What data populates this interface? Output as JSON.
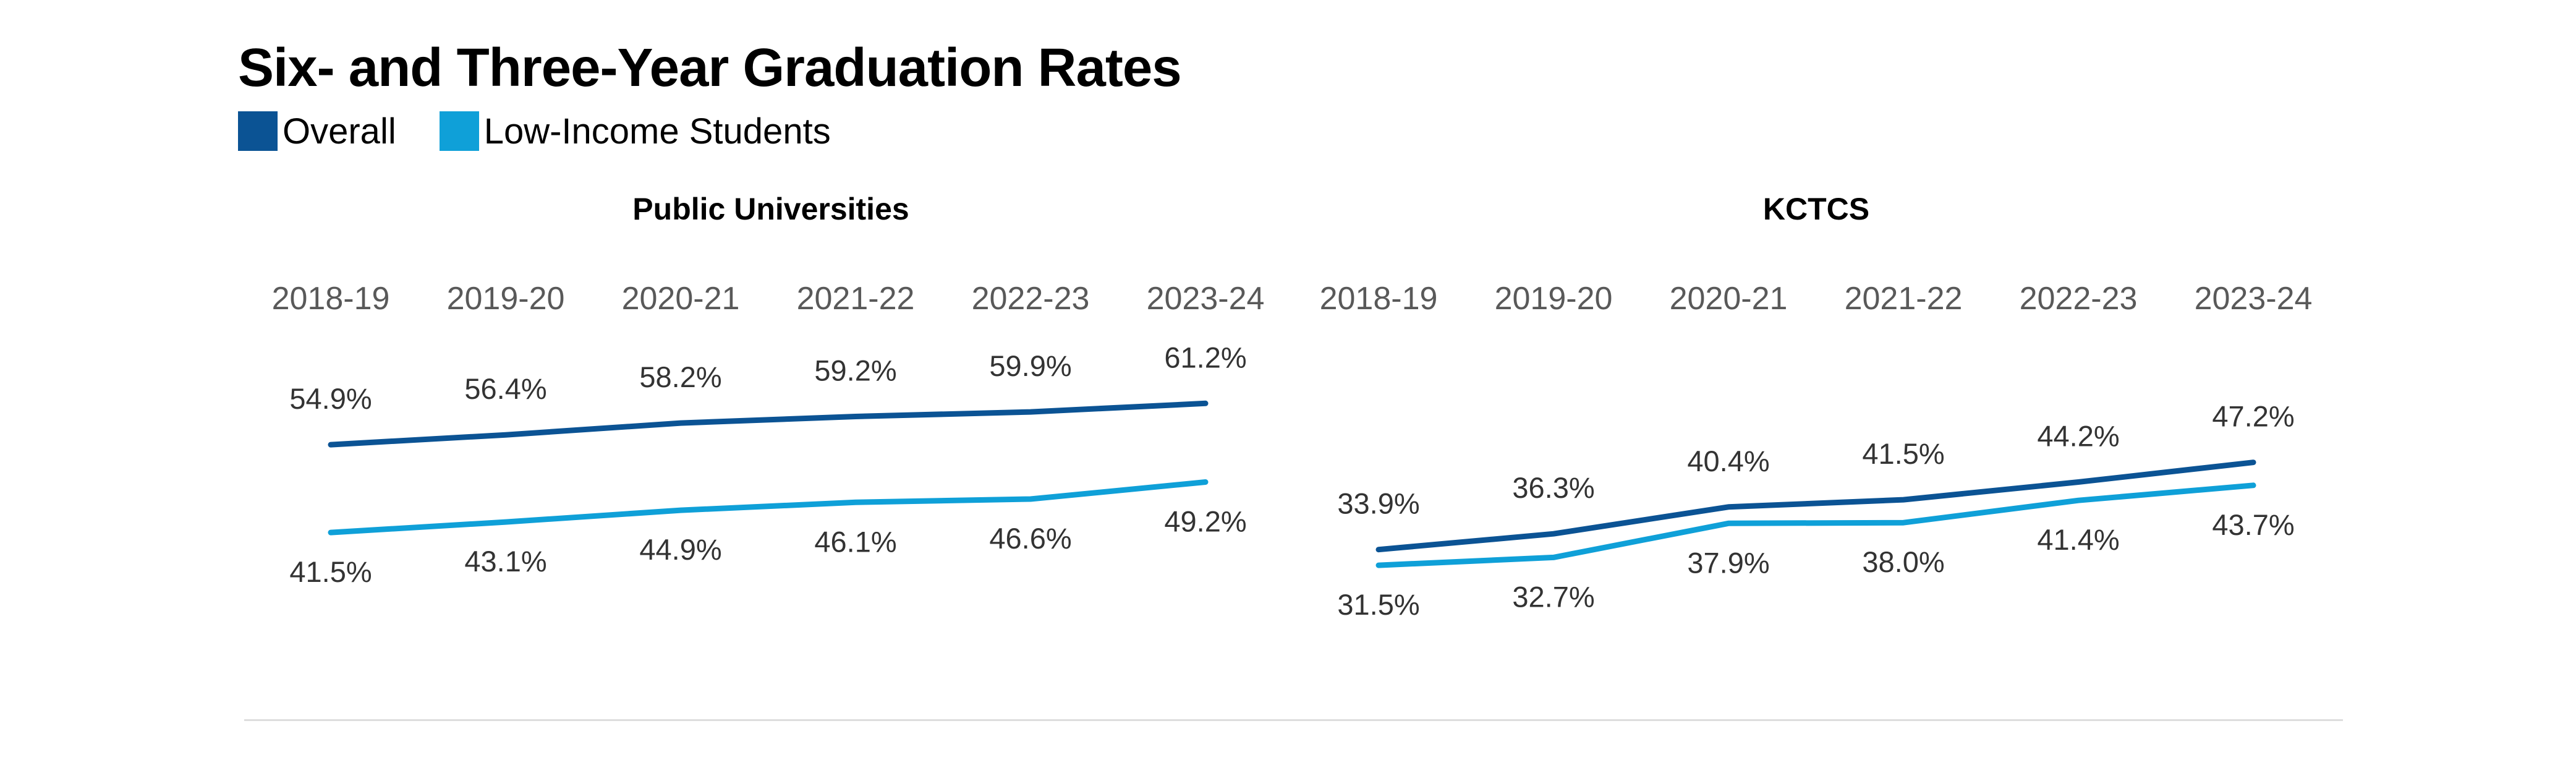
{
  "title": "Six- and Three-Year Graduation Rates",
  "legend": [
    {
      "label": "Overall",
      "color": "#0b5394"
    },
    {
      "label": "Low-Income Students",
      "color": "#0fa0d8"
    }
  ],
  "chart_data": [
    {
      "type": "line",
      "title": "Public Universities",
      "categories": [
        "2018-19",
        "2019-20",
        "2020-21",
        "2021-22",
        "2022-23",
        "2023-24"
      ],
      "series": [
        {
          "name": "Overall",
          "color": "#0b5394",
          "values": [
            54.9,
            56.4,
            58.2,
            59.2,
            59.9,
            61.2
          ],
          "labels": [
            "54.9%",
            "56.4%",
            "58.2%",
            "59.2%",
            "59.9%",
            "61.2%"
          ]
        },
        {
          "name": "Low-Income Students",
          "color": "#0fa0d8",
          "values": [
            41.5,
            43.1,
            44.9,
            46.1,
            46.6,
            49.2
          ],
          "labels": [
            "41.5%",
            "43.1%",
            "44.9%",
            "46.1%",
            "46.6%",
            "49.2%"
          ]
        }
      ],
      "grid": false,
      "legend_position": "top-left"
    },
    {
      "type": "line",
      "title": "KCTCS",
      "categories": [
        "2018-19",
        "2019-20",
        "2020-21",
        "2021-22",
        "2022-23",
        "2023-24"
      ],
      "series": [
        {
          "name": "Overall",
          "color": "#0b5394",
          "values": [
            33.9,
            36.3,
            40.4,
            41.5,
            44.2,
            47.2
          ],
          "labels": [
            "33.9%",
            "36.3%",
            "40.4%",
            "41.5%",
            "44.2%",
            "47.2%"
          ]
        },
        {
          "name": "Low-Income Students",
          "color": "#0fa0d8",
          "values": [
            31.5,
            32.7,
            37.9,
            38.0,
            41.4,
            43.7
          ],
          "labels": [
            "31.5%",
            "32.7%",
            "37.9%",
            "38.0%",
            "41.4%",
            "43.7%"
          ]
        }
      ],
      "grid": false
    }
  ]
}
